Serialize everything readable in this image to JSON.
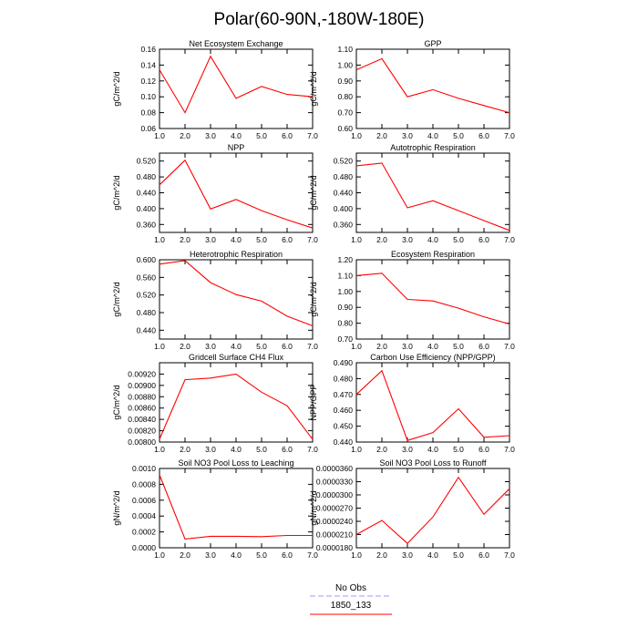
{
  "title": "Polar(60-90N,-180W-180E)",
  "legend": {
    "entries": [
      {
        "label": "No Obs",
        "color": "#9999ff",
        "dash": true
      },
      {
        "label": "1850_133",
        "color": "#ff0000",
        "dash": false
      }
    ]
  },
  "chart_data": [
    {
      "type": "line",
      "title": "Net Ecosystem Exchange",
      "ylabel": "gC/m^2/d",
      "x": [
        1,
        2,
        3,
        4,
        5,
        6,
        7
      ],
      "xlim": [
        1,
        7
      ],
      "xticks": [
        "1.0",
        "2.0",
        "3.0",
        "4.0",
        "5.0",
        "6.0",
        "7.0"
      ],
      "ylim": [
        0.06,
        0.16
      ],
      "yticks": [
        {
          "v": 0.06,
          "label": "0.06"
        },
        {
          "v": 0.08,
          "label": "0.08"
        },
        {
          "v": 0.1,
          "label": "0.10"
        },
        {
          "v": 0.12,
          "label": "0.12"
        },
        {
          "v": 0.14,
          "label": "0.14"
        },
        {
          "v": 0.16,
          "label": "0.16"
        }
      ],
      "series": [
        {
          "name": "1850_133",
          "color": "#ff0000",
          "values": [
            0.134,
            0.08,
            0.151,
            0.098,
            0.113,
            0.103,
            0.1
          ]
        }
      ]
    },
    {
      "type": "line",
      "title": "GPP",
      "ylabel": "gC/m^2/d",
      "x": [
        1,
        2,
        3,
        4,
        5,
        6,
        7
      ],
      "xlim": [
        1,
        7
      ],
      "xticks": [
        "1.0",
        "2.0",
        "3.0",
        "4.0",
        "5.0",
        "6.0",
        "7.0"
      ],
      "ylim": [
        0.6,
        1.1
      ],
      "yticks": [
        {
          "v": 0.6,
          "label": "0.60"
        },
        {
          "v": 0.7,
          "label": "0.70"
        },
        {
          "v": 0.8,
          "label": "0.80"
        },
        {
          "v": 0.9,
          "label": "0.90"
        },
        {
          "v": 1.0,
          "label": "1.00"
        },
        {
          "v": 1.1,
          "label": "1.10"
        }
      ],
      "series": [
        {
          "name": "1850_133",
          "color": "#ff0000",
          "values": [
            0.97,
            1.04,
            0.8,
            0.845,
            0.79,
            0.745,
            0.7
          ]
        }
      ]
    },
    {
      "type": "line",
      "title": "NPP",
      "ylabel": "gC/m^2/d",
      "x": [
        1,
        2,
        3,
        4,
        5,
        6,
        7
      ],
      "xlim": [
        1,
        7
      ],
      "xticks": [
        "1.0",
        "2.0",
        "3.0",
        "4.0",
        "5.0",
        "6.0",
        "7.0"
      ],
      "ylim": [
        0.34,
        0.54
      ],
      "yticks": [
        {
          "v": 0.36,
          "label": "0.360"
        },
        {
          "v": 0.4,
          "label": "0.400"
        },
        {
          "v": 0.44,
          "label": "0.440"
        },
        {
          "v": 0.48,
          "label": "0.480"
        },
        {
          "v": 0.52,
          "label": "0.520"
        }
      ],
      "series": [
        {
          "name": "1850_133",
          "color": "#ff0000",
          "values": [
            0.46,
            0.522,
            0.399,
            0.423,
            0.395,
            0.372,
            0.351
          ]
        }
      ]
    },
    {
      "type": "line",
      "title": "Autotrophic Respiration",
      "ylabel": "gC/m^2/d",
      "x": [
        1,
        2,
        3,
        4,
        5,
        6,
        7
      ],
      "xlim": [
        1,
        7
      ],
      "xticks": [
        "1.0",
        "2.0",
        "3.0",
        "4.0",
        "5.0",
        "6.0",
        "7.0"
      ],
      "ylim": [
        0.34,
        0.54
      ],
      "yticks": [
        {
          "v": 0.36,
          "label": "0.360"
        },
        {
          "v": 0.4,
          "label": "0.400"
        },
        {
          "v": 0.44,
          "label": "0.440"
        },
        {
          "v": 0.48,
          "label": "0.480"
        },
        {
          "v": 0.52,
          "label": "0.520"
        }
      ],
      "series": [
        {
          "name": "1850_133",
          "color": "#ff0000",
          "values": [
            0.508,
            0.515,
            0.402,
            0.42,
            0.395,
            0.37,
            0.345
          ]
        }
      ]
    },
    {
      "type": "line",
      "title": "Heterotrophic Respiration",
      "ylabel": "gC/m^2/d",
      "x": [
        1,
        2,
        3,
        4,
        5,
        6,
        7
      ],
      "xlim": [
        1,
        7
      ],
      "xticks": [
        "1.0",
        "2.0",
        "3.0",
        "4.0",
        "5.0",
        "6.0",
        "7.0"
      ],
      "ylim": [
        0.42,
        0.6
      ],
      "yticks": [
        {
          "v": 0.44,
          "label": "0.440"
        },
        {
          "v": 0.48,
          "label": "0.480"
        },
        {
          "v": 0.52,
          "label": "0.520"
        },
        {
          "v": 0.56,
          "label": "0.560"
        },
        {
          "v": 0.6,
          "label": "0.600"
        }
      ],
      "series": [
        {
          "name": "1850_133",
          "color": "#ff0000",
          "values": [
            0.59,
            0.598,
            0.548,
            0.521,
            0.506,
            0.472,
            0.45
          ]
        }
      ]
    },
    {
      "type": "line",
      "title": "Ecosystem Respiration",
      "ylabel": "gC/m^2/d",
      "x": [
        1,
        2,
        3,
        4,
        5,
        6,
        7
      ],
      "xlim": [
        1,
        7
      ],
      "xticks": [
        "1.0",
        "2.0",
        "3.0",
        "4.0",
        "5.0",
        "6.0",
        "7.0"
      ],
      "ylim": [
        0.7,
        1.2
      ],
      "yticks": [
        {
          "v": 0.7,
          "label": "0.70"
        },
        {
          "v": 0.8,
          "label": "0.80"
        },
        {
          "v": 0.9,
          "label": "0.90"
        },
        {
          "v": 1.0,
          "label": "1.00"
        },
        {
          "v": 1.1,
          "label": "1.10"
        },
        {
          "v": 1.2,
          "label": "1.20"
        }
      ],
      "series": [
        {
          "name": "1850_133",
          "color": "#ff0000",
          "values": [
            1.1,
            1.115,
            0.95,
            0.94,
            0.895,
            0.84,
            0.795
          ]
        }
      ]
    },
    {
      "type": "line",
      "title": "Gridcell Surface CH4 Flux",
      "ylabel": "gC/m^2/d",
      "x": [
        1,
        2,
        3,
        4,
        5,
        6,
        7
      ],
      "xlim": [
        1,
        7
      ],
      "xticks": [
        "1.0",
        "2.0",
        "3.0",
        "4.0",
        "5.0",
        "6.0",
        "7.0"
      ],
      "ylim": [
        0.008,
        0.0094
      ],
      "yticks": [
        {
          "v": 0.008,
          "label": "0.00800"
        },
        {
          "v": 0.0082,
          "label": "0.00820"
        },
        {
          "v": 0.0084,
          "label": "0.00840"
        },
        {
          "v": 0.0086,
          "label": "0.00860"
        },
        {
          "v": 0.0088,
          "label": "0.00880"
        },
        {
          "v": 0.009,
          "label": "0.00900"
        },
        {
          "v": 0.0092,
          "label": "0.00920"
        }
      ],
      "series": [
        {
          "name": "1850_133",
          "color": "#ff0000",
          "values": [
            0.00805,
            0.0091,
            0.00913,
            0.0092,
            0.00888,
            0.00864,
            0.00805
          ]
        }
      ]
    },
    {
      "type": "line",
      "title": "Carbon Use Efficiency (NPP/GPP)",
      "ylabel": "NPP/GPP",
      "x": [
        1,
        2,
        3,
        4,
        5,
        6,
        7
      ],
      "xlim": [
        1,
        7
      ],
      "xticks": [
        "1.0",
        "2.0",
        "3.0",
        "4.0",
        "5.0",
        "6.0",
        "7.0"
      ],
      "ylim": [
        0.44,
        0.49
      ],
      "yticks": [
        {
          "v": 0.44,
          "label": "0.440"
        },
        {
          "v": 0.45,
          "label": "0.450"
        },
        {
          "v": 0.46,
          "label": "0.460"
        },
        {
          "v": 0.47,
          "label": "0.470"
        },
        {
          "v": 0.48,
          "label": "0.480"
        },
        {
          "v": 0.49,
          "label": "0.490"
        }
      ],
      "series": [
        {
          "name": "1850_133",
          "color": "#ff0000",
          "values": [
            0.47,
            0.485,
            0.441,
            0.446,
            0.461,
            0.443,
            0.444
          ]
        }
      ]
    },
    {
      "type": "line",
      "title": "Soil NO3 Pool Loss to Leaching",
      "ylabel": "gN/m^2/d",
      "x": [
        1,
        2,
        3,
        4,
        5,
        6,
        7
      ],
      "xlim": [
        1,
        7
      ],
      "xticks": [
        "1.0",
        "2.0",
        "3.0",
        "4.0",
        "5.0",
        "6.0",
        "7.0"
      ],
      "ylim": [
        0.0,
        0.001
      ],
      "yticks": [
        {
          "v": 0.0,
          "label": "0.0000"
        },
        {
          "v": 0.0002,
          "label": "0.0002"
        },
        {
          "v": 0.0004,
          "label": "0.0004"
        },
        {
          "v": 0.0006,
          "label": "0.0006"
        },
        {
          "v": 0.0008,
          "label": "0.0008"
        },
        {
          "v": 0.001,
          "label": "0.0010"
        }
      ],
      "series": [
        {
          "name": "1850_133",
          "color": "#ff0000",
          "values": [
            0.00092,
            0.00011,
            0.000145,
            0.000145,
            0.00014,
            0.000155,
            0.000155
          ]
        }
      ]
    },
    {
      "type": "line",
      "title": "Soil NO3 Pool Loss to Runoff",
      "ylabel": "gN/m^2/d",
      "x": [
        1,
        2,
        3,
        4,
        5,
        6,
        7
      ],
      "xlim": [
        1,
        7
      ],
      "xticks": [
        "1.0",
        "2.0",
        "3.0",
        "4.0",
        "5.0",
        "6.0",
        "7.0"
      ],
      "ylim": [
        1.8e-05,
        3.6e-05
      ],
      "yticks": [
        {
          "v": 1.8e-05,
          "label": "0.0000180"
        },
        {
          "v": 2.1e-05,
          "label": "0.0000210"
        },
        {
          "v": 2.4e-05,
          "label": "0.0000240"
        },
        {
          "v": 2.7e-05,
          "label": "0.0000270"
        },
        {
          "v": 3e-05,
          "label": "0.0000300"
        },
        {
          "v": 3.3e-05,
          "label": "0.0000330"
        },
        {
          "v": 3.6e-05,
          "label": "0.0000360"
        }
      ],
      "series": [
        {
          "name": "1850_133",
          "color": "#ff0000",
          "values": [
            2.1e-05,
            2.42e-05,
            1.9e-05,
            2.5e-05,
            3.4e-05,
            2.56e-05,
            3.14e-05
          ]
        }
      ]
    }
  ]
}
